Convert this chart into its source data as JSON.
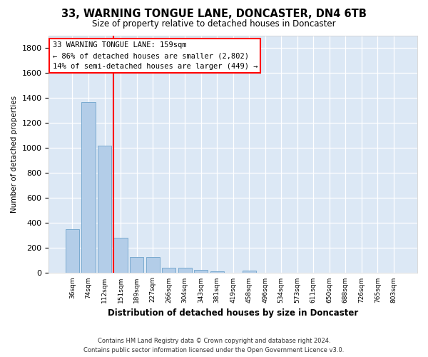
{
  "title": "33, WARNING TONGUE LANE, DONCASTER, DN4 6TB",
  "subtitle": "Size of property relative to detached houses in Doncaster",
  "xlabel": "Distribution of detached houses by size in Doncaster",
  "ylabel": "Number of detached properties",
  "categories": [
    "36sqm",
    "74sqm",
    "112sqm",
    "151sqm",
    "189sqm",
    "227sqm",
    "266sqm",
    "304sqm",
    "343sqm",
    "381sqm",
    "419sqm",
    "458sqm",
    "496sqm",
    "534sqm",
    "573sqm",
    "611sqm",
    "650sqm",
    "688sqm",
    "726sqm",
    "765sqm",
    "803sqm"
  ],
  "values": [
    350,
    1370,
    1020,
    280,
    130,
    130,
    45,
    40,
    25,
    15,
    0,
    20,
    0,
    0,
    0,
    0,
    0,
    0,
    0,
    0,
    0
  ],
  "bar_color": "#b3cde8",
  "bar_edge_color": "#7aaad0",
  "annotation_line1": "33 WARNING TONGUE LANE: 159sqm",
  "annotation_line2": "← 86% of detached houses are smaller (2,802)",
  "annotation_line3": "14% of semi-detached houses are larger (449) →",
  "ylim": [
    0,
    1900
  ],
  "yticks": [
    0,
    200,
    400,
    600,
    800,
    1000,
    1200,
    1400,
    1600,
    1800
  ],
  "fig_bg_color": "#ffffff",
  "plot_bg_color": "#dce8f5",
  "footer_line1": "Contains HM Land Registry data © Crown copyright and database right 2024.",
  "footer_line2": "Contains public sector information licensed under the Open Government Licence v3.0."
}
